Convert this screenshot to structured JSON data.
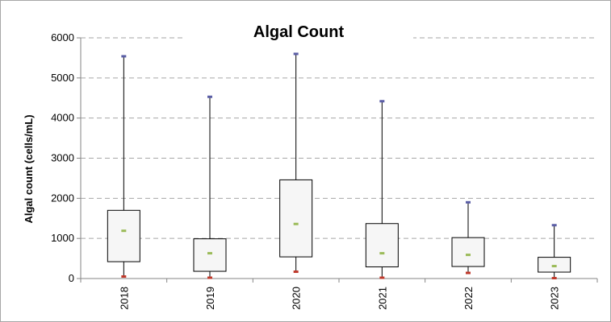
{
  "chart_data": {
    "type": "box",
    "title": "Algal Count",
    "xlabel": "",
    "ylabel": "Algal count (cells/mL)",
    "ylim": [
      0,
      6000
    ],
    "yticks": [
      0,
      1000,
      2000,
      3000,
      4000,
      5000,
      6000
    ],
    "grid": true,
    "categories": [
      "2018",
      "2019",
      "2020",
      "2021",
      "2022",
      "2023"
    ],
    "boxes": [
      {
        "category": "2018",
        "min": 50,
        "q1": 420,
        "mean": 1190,
        "q3": 1700,
        "max": 5540
      },
      {
        "category": "2019",
        "min": 20,
        "q1": 180,
        "mean": 630,
        "q3": 990,
        "max": 4530
      },
      {
        "category": "2020",
        "min": 170,
        "q1": 540,
        "mean": 1360,
        "q3": 2460,
        "max": 5600
      },
      {
        "category": "2021",
        "min": 20,
        "q1": 290,
        "mean": 630,
        "q3": 1370,
        "max": 4420
      },
      {
        "category": "2022",
        "min": 140,
        "q1": 300,
        "mean": 590,
        "q3": 1020,
        "max": 1900
      },
      {
        "category": "2023",
        "min": 10,
        "q1": 160,
        "mean": 310,
        "q3": 530,
        "max": 1330
      }
    ],
    "colors": {
      "box_fill": "#f6f6f6",
      "box_stroke": "#000000",
      "max_marker": "#5b5ea6",
      "min_marker": "#c0392b",
      "mean_marker": "#9bbb59",
      "grid": "#a6a6a6"
    }
  }
}
